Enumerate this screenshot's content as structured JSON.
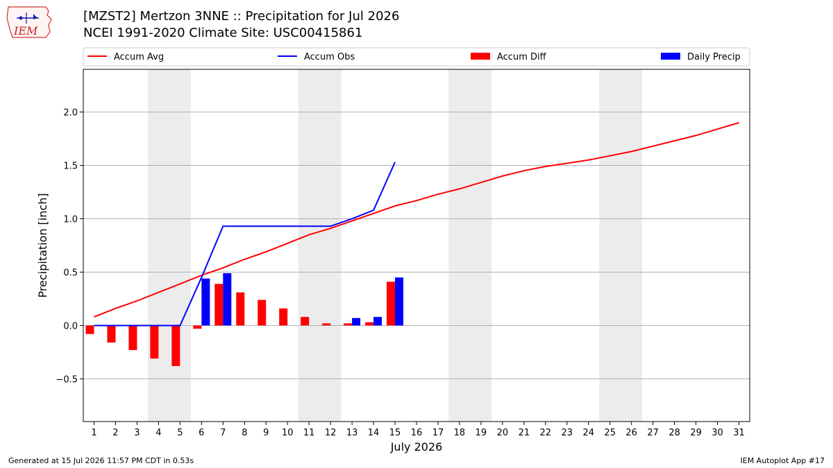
{
  "header": {
    "title_line1": "[MZST2] Mertzon 3NNE :: Precipitation for Jul 2026",
    "title_line2": "NCEI 1991-2020 Climate Site: USC00415861",
    "logo_text": "IEM"
  },
  "footer": {
    "generated": "Generated at 15 Jul 2026 11:57 PM CDT in 0.53s",
    "app": "IEM Autoplot App #17"
  },
  "colors": {
    "avg": "#ff0000",
    "obs": "#0000ff",
    "diff": "#ff0000",
    "daily": "#0000ff",
    "weekend_shade": "#ececec",
    "grid": "#b0b0b0"
  },
  "chart_data": {
    "type": "bar",
    "xlabel": "July 2026",
    "ylabel": "Precipitation [inch]",
    "xlim": [
      0.5,
      31.5
    ],
    "ylim": [
      -0.9,
      2.4
    ],
    "yticks": [
      -0.5,
      0.0,
      0.5,
      1.0,
      1.5,
      2.0
    ],
    "ytick_labels": [
      "−0.5",
      "0.0",
      "0.5",
      "1.0",
      "1.5",
      "2.0"
    ],
    "days": [
      1,
      2,
      3,
      4,
      5,
      6,
      7,
      8,
      9,
      10,
      11,
      12,
      13,
      14,
      15,
      16,
      17,
      18,
      19,
      20,
      21,
      22,
      23,
      24,
      25,
      26,
      27,
      28,
      29,
      30,
      31
    ],
    "weekend_bands": [
      [
        3.5,
        5.5
      ],
      [
        10.5,
        12.5
      ],
      [
        17.5,
        19.5
      ],
      [
        24.5,
        26.5
      ]
    ],
    "grid": true,
    "legend_position": "top",
    "series": [
      {
        "name": "Accum Avg",
        "kind": "line",
        "x": [
          1,
          2,
          3,
          4,
          5,
          6,
          7,
          8,
          9,
          10,
          11,
          12,
          13,
          14,
          15,
          16,
          17,
          18,
          19,
          20,
          21,
          22,
          23,
          24,
          25,
          26,
          27,
          28,
          29,
          30,
          31
        ],
        "values": [
          0.08,
          0.16,
          0.23,
          0.31,
          0.39,
          0.47,
          0.54,
          0.62,
          0.69,
          0.77,
          0.85,
          0.91,
          0.98,
          1.05,
          1.12,
          1.17,
          1.23,
          1.28,
          1.34,
          1.4,
          1.45,
          1.49,
          1.52,
          1.55,
          1.59,
          1.63,
          1.68,
          1.73,
          1.78,
          1.84,
          1.9
        ]
      },
      {
        "name": "Accum Obs",
        "kind": "line",
        "x": [
          1,
          2,
          3,
          4,
          5,
          6,
          7,
          8,
          9,
          10,
          11,
          12,
          13,
          14,
          15
        ],
        "values": [
          0.0,
          0.0,
          0.0,
          0.0,
          0.0,
          0.45,
          0.93,
          0.93,
          0.93,
          0.93,
          0.93,
          0.93,
          1.0,
          1.08,
          1.53
        ]
      },
      {
        "name": "Accum Diff",
        "kind": "bar",
        "x": [
          1,
          2,
          3,
          4,
          5,
          6,
          7,
          8,
          9,
          10,
          11,
          12,
          13,
          14,
          15
        ],
        "values": [
          -0.08,
          -0.16,
          -0.23,
          -0.31,
          -0.38,
          -0.03,
          0.39,
          0.31,
          0.24,
          0.16,
          0.08,
          0.02,
          0.02,
          0.03,
          0.41
        ]
      },
      {
        "name": "Daily Precip",
        "kind": "bar",
        "x": [
          1,
          2,
          3,
          4,
          5,
          6,
          7,
          8,
          9,
          10,
          11,
          12,
          13,
          14,
          15
        ],
        "values": [
          0.0,
          0.0,
          0.0,
          0.0,
          0.0,
          0.44,
          0.49,
          0.0,
          0.0,
          0.0,
          0.0,
          0.0,
          0.07,
          0.08,
          0.45
        ]
      }
    ]
  }
}
